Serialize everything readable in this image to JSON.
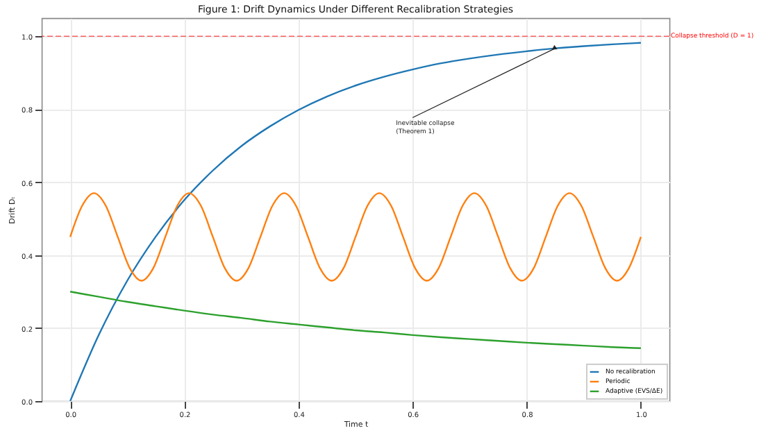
{
  "chart_data": {
    "type": "line",
    "title": "Figure 1: Drift Dynamics Under Different Recalibration Strategies",
    "xlabel": "Time t",
    "ylabel": "Drift Dₜ",
    "xlim": [
      -0.05,
      1.05
    ],
    "ylim": [
      0,
      1.05
    ],
    "xticks": [
      {
        "value": 0,
        "label": "0.0"
      },
      0.2,
      0.4,
      0.6,
      0.8,
      {
        "value": 1,
        "label": "1.0"
      }
    ],
    "yticks": [
      {
        "value": 0,
        "label": "0.0"
      },
      0.2,
      0.4,
      0.6,
      0.8,
      {
        "value": 1,
        "label": "1.0"
      }
    ],
    "grid": true,
    "legend": "bottom right",
    "line_style": "solid",
    "series": [
      {
        "name": "No recalibration",
        "color": "#1f77b4",
        "x": [
          0,
          0.05,
          0.1,
          0.15,
          0.2,
          0.25,
          0.3,
          0.35,
          0.4,
          0.45,
          0.5,
          0.55,
          0.6,
          0.65,
          0.7,
          0.75,
          0.8,
          0.85,
          0.9,
          0.95,
          1
        ],
        "values": [
          0,
          0.181,
          0.33,
          0.451,
          0.551,
          0.632,
          0.699,
          0.753,
          0.798,
          0.835,
          0.865,
          0.889,
          0.909,
          0.926,
          0.939,
          0.95,
          0.959,
          0.967,
          0.973,
          0.978,
          0.982
        ]
      },
      {
        "name": "Periodic",
        "color": "#ff7f0e",
        "x": [
          0,
          0.0208,
          0.0417,
          0.0625,
          0.0833,
          0.1042,
          0.125,
          0.1458,
          0.1667,
          0.1875,
          0.2083,
          0.2292,
          0.25,
          0.2708,
          0.2917,
          0.3125,
          0.3333,
          0.3542,
          0.375,
          0.3958,
          0.4167,
          0.4375,
          0.4583,
          0.4792,
          0.5,
          0.5208,
          0.5417,
          0.5625,
          0.5833,
          0.6042,
          0.625,
          0.6458,
          0.6667,
          0.6875,
          0.7083,
          0.7292,
          0.75,
          0.7708,
          0.7917,
          0.8125,
          0.8333,
          0.8542,
          0.875,
          0.8958,
          0.9167,
          0.9375,
          0.9583,
          0.9792,
          1
        ],
        "values": [
          0.45,
          0.535,
          0.57,
          0.535,
          0.45,
          0.365,
          0.33,
          0.365,
          0.45,
          0.535,
          0.57,
          0.535,
          0.45,
          0.365,
          0.33,
          0.365,
          0.45,
          0.535,
          0.57,
          0.535,
          0.45,
          0.365,
          0.33,
          0.365,
          0.45,
          0.535,
          0.57,
          0.535,
          0.45,
          0.365,
          0.33,
          0.365,
          0.45,
          0.535,
          0.57,
          0.535,
          0.45,
          0.365,
          0.33,
          0.365,
          0.45,
          0.535,
          0.57,
          0.535,
          0.45,
          0.365,
          0.33,
          0.365,
          0.45
        ]
      },
      {
        "name": "Adaptive (EVS/ΔE)",
        "color": "#2ca02c",
        "x": [
          0,
          0.05,
          0.1,
          0.15,
          0.2,
          0.25,
          0.3,
          0.35,
          0.4,
          0.45,
          0.5,
          0.55,
          0.6,
          0.65,
          0.7,
          0.75,
          0.8,
          0.85,
          0.9,
          0.95,
          1
        ],
        "values": [
          0.3,
          0.286,
          0.272,
          0.26,
          0.248,
          0.237,
          0.228,
          0.218,
          0.21,
          0.202,
          0.194,
          0.188,
          0.181,
          0.175,
          0.17,
          0.165,
          0.16,
          0.156,
          0.152,
          0.148,
          0.145
        ]
      }
    ],
    "ref_lines": [
      {
        "axis": "y",
        "value": 1,
        "label": "Collapse threshold (D = 1)",
        "color": "#ff0000",
        "line_style": "dashed"
      }
    ],
    "annotations": [
      {
        "text": "Inevitable collapse\n(Theorem 1)",
        "x": 0.85,
        "y": 0.967
      }
    ]
  }
}
